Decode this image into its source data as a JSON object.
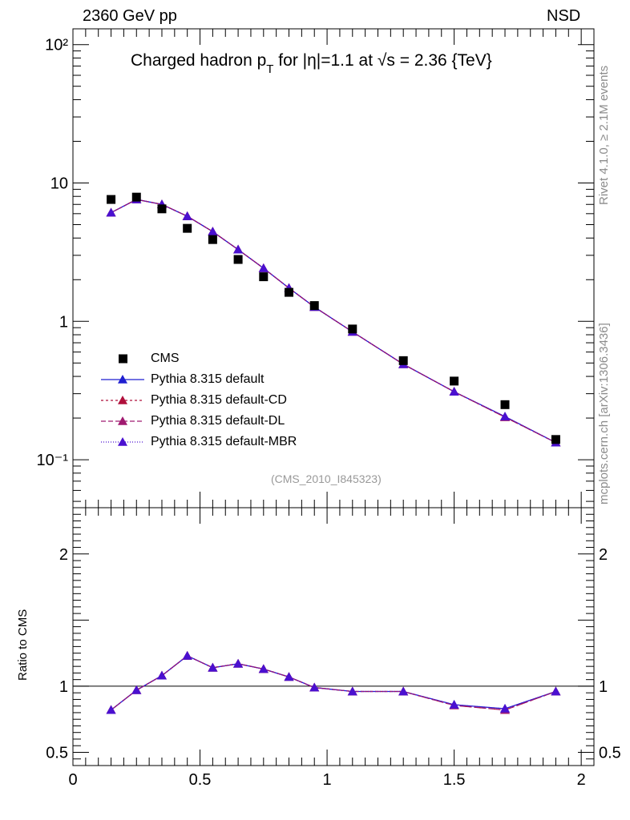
{
  "header": {
    "left": "2360 GeV pp",
    "right": "NSD"
  },
  "side": {
    "rivet": "Rivet 4.1.0, ≥ 2.1M events",
    "reference": "mcplots.cern.ch [arXiv:1306.3436]"
  },
  "title": {
    "prefix": "Charged hadron p",
    "sub": "T",
    "suffix": " for |η|=1.1 at √s = 2.36 {TeV}"
  },
  "watermark": "(CMS_2010_I845323)",
  "chart_data": {
    "type": "scatter",
    "main": {
      "yscale": "log",
      "ylim": [
        0.045,
        130
      ],
      "xlim": [
        0,
        2.05
      ],
      "yticks": [
        {
          "value": 100,
          "label": "10²"
        },
        {
          "value": 10,
          "label": "10"
        },
        {
          "value": 1,
          "label": "1"
        },
        {
          "value": 0.1,
          "label": "10⁻¹"
        }
      ]
    },
    "ratio": {
      "ylabel": "Ratio to CMS",
      "ylim": [
        0.4,
        2.35
      ],
      "yticks": [
        {
          "value": 2,
          "label": "2"
        },
        {
          "value": 1,
          "label": "1"
        },
        {
          "value": 0.5,
          "label": "0.5"
        }
      ]
    },
    "x": [
      0.15,
      0.25,
      0.35,
      0.45,
      0.55,
      0.65,
      0.75,
      0.85,
      0.95,
      1.1,
      1.3,
      1.5,
      1.7,
      1.9
    ],
    "xticks": [
      {
        "value": 0,
        "label": "0"
      },
      {
        "value": 0.5,
        "label": "0.5"
      },
      {
        "value": 1,
        "label": "1"
      },
      {
        "value": 1.5,
        "label": "1.5"
      },
      {
        "value": 2,
        "label": "2"
      }
    ],
    "data_series": {
      "name": "CMS",
      "values": [
        7.6,
        7.9,
        6.5,
        4.7,
        3.9,
        2.8,
        2.1,
        1.62,
        1.3,
        0.88,
        0.52,
        0.37,
        0.25,
        0.14
      ]
    },
    "series": [
      {
        "name": "Pythia 8.315 default",
        "color": "#1f1fd0",
        "dash": "solid",
        "values": [
          6.1,
          7.6,
          7.0,
          5.75,
          4.45,
          3.3,
          2.42,
          1.74,
          1.27,
          0.84,
          0.49,
          0.31,
          0.205,
          0.133
        ],
        "ratio": [
          0.82,
          0.97,
          1.08,
          1.23,
          1.14,
          1.17,
          1.13,
          1.07,
          0.99,
          0.96,
          0.96,
          0.86,
          0.83,
          0.96
        ]
      },
      {
        "name": "Pythia 8.315 default-CD",
        "color": "#b0103c",
        "dash": "3,3",
        "values": [
          6.1,
          7.6,
          7.0,
          5.75,
          4.45,
          3.3,
          2.42,
          1.74,
          1.27,
          0.84,
          0.49,
          0.31,
          0.203,
          0.133
        ],
        "ratio": [
          0.82,
          0.97,
          1.08,
          1.23,
          1.14,
          1.17,
          1.13,
          1.07,
          0.99,
          0.96,
          0.96,
          0.855,
          0.82,
          0.96
        ]
      },
      {
        "name": "Pythia 8.315 default-DL",
        "color": "#a01a70",
        "dash": "6,3",
        "values": [
          6.1,
          7.6,
          7.0,
          5.75,
          4.45,
          3.3,
          2.42,
          1.74,
          1.27,
          0.84,
          0.49,
          0.31,
          0.203,
          0.133
        ],
        "ratio": [
          0.82,
          0.97,
          1.08,
          1.23,
          1.14,
          1.17,
          1.13,
          1.07,
          0.99,
          0.96,
          0.96,
          0.855,
          0.82,
          0.96
        ]
      },
      {
        "name": "Pythia 8.315 default-MBR",
        "color": "#4a10d0",
        "dash": "1,2",
        "values": [
          6.1,
          7.6,
          7.0,
          5.75,
          4.45,
          3.3,
          2.42,
          1.74,
          1.27,
          0.84,
          0.49,
          0.31,
          0.205,
          0.133
        ],
        "ratio": [
          0.82,
          0.97,
          1.08,
          1.23,
          1.14,
          1.17,
          1.13,
          1.07,
          0.99,
          0.96,
          0.96,
          0.86,
          0.83,
          0.96
        ]
      }
    ]
  }
}
